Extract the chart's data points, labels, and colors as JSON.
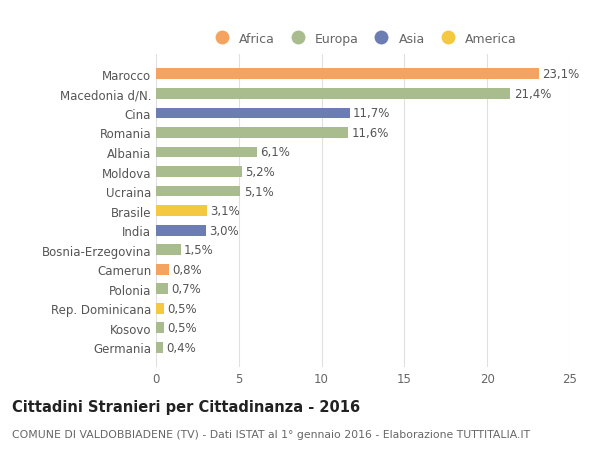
{
  "categories": [
    "Germania",
    "Kosovo",
    "Rep. Dominicana",
    "Polonia",
    "Camerun",
    "Bosnia-Erzegovina",
    "India",
    "Brasile",
    "Ucraina",
    "Moldova",
    "Albania",
    "Romania",
    "Cina",
    "Macedonia d/N.",
    "Marocco"
  ],
  "values": [
    0.4,
    0.5,
    0.5,
    0.7,
    0.8,
    1.5,
    3.0,
    3.1,
    5.1,
    5.2,
    6.1,
    11.6,
    11.7,
    21.4,
    23.1
  ],
  "labels": [
    "0,4%",
    "0,5%",
    "0,5%",
    "0,7%",
    "0,8%",
    "1,5%",
    "3,0%",
    "3,1%",
    "5,1%",
    "5,2%",
    "6,1%",
    "11,6%",
    "11,7%",
    "21,4%",
    "23,1%"
  ],
  "bar_colors": [
    "#A8BC8E",
    "#A8BC8E",
    "#F5C842",
    "#A8BC8E",
    "#F4A460",
    "#A8BC8E",
    "#6B7DB3",
    "#F5C842",
    "#A8BC8E",
    "#A8BC8E",
    "#A8BC8E",
    "#A8BC8E",
    "#6B7DB3",
    "#A8BC8E",
    "#F4A460"
  ],
  "legend_order": [
    "Africa",
    "Europa",
    "Asia",
    "America"
  ],
  "legend_colors": [
    "#F4A460",
    "#A8BC8E",
    "#6B7DB3",
    "#F5C842"
  ],
  "title": "Cittadini Stranieri per Cittadinanza - 2016",
  "subtitle": "COMUNE DI VALDOBBIADENE (TV) - Dati ISTAT al 1° gennaio 2016 - Elaborazione TUTTITALIA.IT",
  "xlim": [
    0,
    25
  ],
  "xticks": [
    0,
    5,
    10,
    15,
    20,
    25
  ],
  "bg_color": "#ffffff",
  "grid_color": "#e0e0e0",
  "bar_height": 0.55,
  "label_fontsize": 8.5,
  "tick_fontsize": 8.5,
  "legend_fontsize": 9.0,
  "title_fontsize": 10.5,
  "subtitle_fontsize": 7.8
}
